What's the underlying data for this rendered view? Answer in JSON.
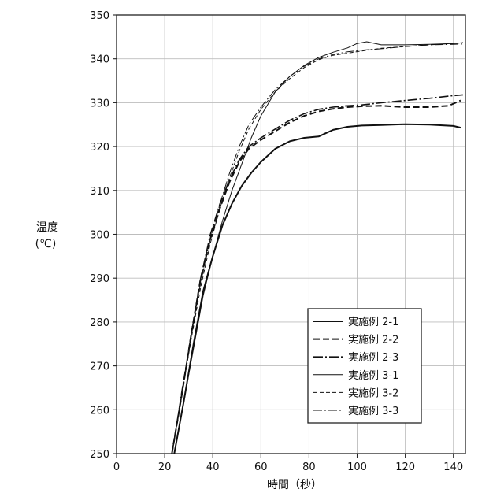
{
  "chart_data": {
    "type": "line",
    "xlabel": "時間（秒）",
    "ylabel_line1": "温度",
    "ylabel_line2": "(℃)",
    "xlim": [
      0,
      145
    ],
    "ylim": [
      250,
      350
    ],
    "xticks": [
      0,
      20,
      40,
      60,
      80,
      100,
      120,
      140
    ],
    "yticks": [
      250,
      260,
      270,
      280,
      290,
      300,
      310,
      320,
      330,
      340,
      350
    ],
    "grid": true,
    "legend_position": "bottom-right",
    "series": [
      {
        "name": "実施例 2-1",
        "style": "solid-thick",
        "x": [
          24,
          28,
          32,
          36,
          40,
          44,
          48,
          52,
          56,
          60,
          66,
          72,
          78,
          84,
          90,
          96,
          102,
          110,
          120,
          130,
          140,
          143
        ],
        "y": [
          250,
          262,
          275,
          287,
          295,
          302,
          307,
          311,
          314,
          316.5,
          319.5,
          321.2,
          322,
          322.3,
          323.8,
          324.5,
          324.8,
          324.9,
          325.1,
          325,
          324.7,
          324.3
        ]
      },
      {
        "name": "実施例 2-2",
        "style": "dashed-thick",
        "x": [
          23,
          27,
          31,
          35,
          39,
          43,
          47,
          51,
          55,
          60,
          66,
          72,
          78,
          84,
          90,
          96,
          102,
          110,
          120,
          130,
          138,
          143
        ],
        "y": [
          250,
          263,
          277,
          290,
          299,
          306,
          312,
          316.5,
          319.5,
          321.5,
          323.5,
          325.5,
          327,
          328,
          328.6,
          329,
          329.2,
          329.3,
          329,
          329,
          329.3,
          330.5
        ]
      },
      {
        "name": "実施例 2-3",
        "style": "dashdot-thick",
        "x": [
          23,
          27,
          31,
          35,
          39,
          43,
          47,
          51,
          55,
          60,
          66,
          72,
          78,
          84,
          90,
          96,
          102,
          110,
          120,
          130,
          138,
          144
        ],
        "y": [
          250,
          263,
          277,
          290,
          300,
          307,
          312.5,
          317,
          320,
          322,
          324,
          326,
          327.5,
          328.5,
          329,
          329.3,
          329.5,
          330,
          330.5,
          331,
          331.5,
          331.8
        ]
      },
      {
        "name": "実施例 3-1",
        "style": "solid-thin",
        "x": [
          24,
          28,
          32,
          36,
          40,
          44,
          48,
          52,
          56,
          60,
          66,
          72,
          78,
          84,
          90,
          96,
          100,
          104,
          110,
          120,
          130,
          140,
          144
        ],
        "y": [
          250,
          262,
          274,
          286,
          295,
          303,
          310,
          316,
          322,
          327,
          332.5,
          336,
          338.5,
          340.3,
          341.5,
          342.5,
          343.5,
          343.9,
          343.2,
          343.2,
          343.3,
          343.5,
          343.7
        ]
      },
      {
        "name": "実施例 3-2",
        "style": "dashed-thin",
        "x": [
          23,
          27,
          31,
          35,
          39,
          43,
          47,
          51,
          55,
          60,
          66,
          72,
          78,
          84,
          90,
          96,
          102,
          110,
          120,
          130,
          140,
          144
        ],
        "y": [
          250,
          263,
          276,
          288,
          298,
          306,
          313,
          319,
          324,
          328.5,
          332.5,
          335.5,
          338,
          339.8,
          340.8,
          341.3,
          341.8,
          342.4,
          342.8,
          343.2,
          343.5,
          343.7
        ]
      },
      {
        "name": "実施例 3-3",
        "style": "dashdot-thin",
        "x": [
          23,
          27,
          31,
          35,
          39,
          43,
          47,
          51,
          55,
          60,
          66,
          72,
          78,
          84,
          90,
          96,
          102,
          110,
          120,
          130,
          140,
          144
        ],
        "y": [
          250,
          264,
          277,
          289,
          299,
          307,
          314,
          320,
          325,
          329,
          333,
          336,
          338.3,
          340,
          341,
          341.6,
          342,
          342.3,
          342.8,
          343.2,
          343.3,
          343.4
        ]
      }
    ]
  }
}
